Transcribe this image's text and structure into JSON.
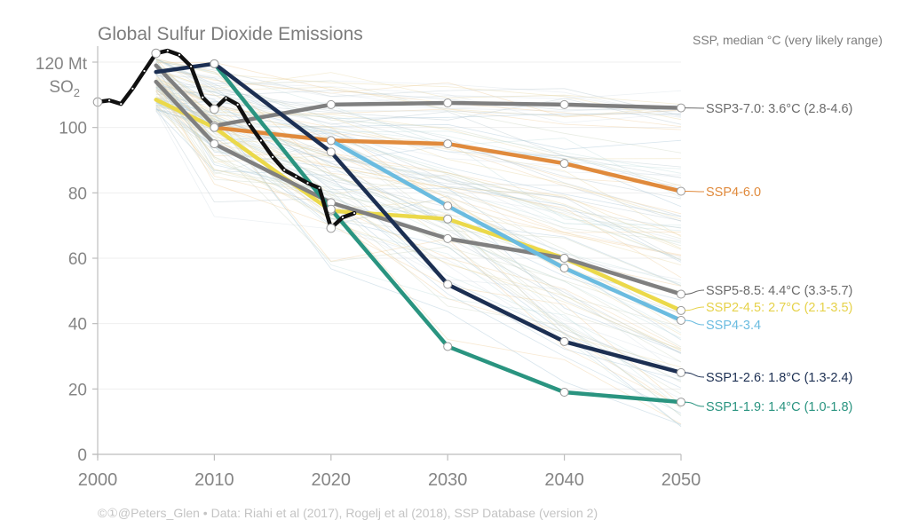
{
  "chart_data": {
    "type": "line",
    "title": "Global Sulfur Dioxide Emissions",
    "ylabel_line1": "120 Mt",
    "ylabel_line2_main": "SO",
    "ylabel_line2_sub": "2",
    "legend_title": "SSP, median °C (very likely range)",
    "xlim": [
      2000,
      2050
    ],
    "ylim": [
      0,
      120
    ],
    "xticks": [
      2000,
      2010,
      2020,
      2030,
      2040,
      2050
    ],
    "yticks": [
      0,
      20,
      40,
      60,
      80,
      100
    ],
    "grid": true,
    "historical": {
      "name": "Historical",
      "color": "#111111",
      "x": [
        2000,
        2001,
        2002,
        2003,
        2004,
        2005,
        2006,
        2007,
        2008,
        2009,
        2010,
        2011,
        2012,
        2013,
        2014,
        2015,
        2016,
        2017,
        2018,
        2019,
        2020,
        2021,
        2022
      ],
      "y": [
        107.8,
        108.3,
        107.2,
        111.9,
        117.3,
        122.7,
        123.5,
        122.2,
        118.7,
        109.2,
        105.6,
        109.0,
        107.0,
        101.0,
        96.0,
        91.0,
        87.0,
        85.0,
        83.0,
        81.5,
        69.2,
        72.5,
        73.8
      ],
      "marked_years": [
        2000,
        2005,
        2010,
        2020
      ]
    },
    "series": [
      {
        "name": "SSP3-7.0",
        "label": "SSP3-7.0: 3.6°C (2.8-4.6)",
        "color": "#7f7f7f",
        "label_color": "#6b6b6b",
        "x": [
          2005,
          2010,
          2020,
          2030,
          2040,
          2050
        ],
        "y": [
          119,
          100.5,
          107,
          107.5,
          107,
          106
        ]
      },
      {
        "name": "SSP4-6.0",
        "label": "SSP4-6.0",
        "color": "#e08a3c",
        "label_color": "#e08a3c",
        "x": [
          2010,
          2020,
          2030,
          2040,
          2050
        ],
        "y": [
          100,
          96,
          95,
          89,
          80.5
        ]
      },
      {
        "name": "SSP5-8.5",
        "label": "SSP5-8.5: 4.4°C (3.3-5.7)",
        "color": "#808080",
        "label_color": "#6b6b6b",
        "x": [
          2005,
          2010,
          2020,
          2030,
          2040,
          2050
        ],
        "y": [
          114,
          95,
          77,
          66,
          60,
          49
        ]
      },
      {
        "name": "SSP2-4.5",
        "label": "SSP2-4.5: 2.7°C (2.1-3.5)",
        "color": "#ebd94a",
        "label_color": "#e6d24a",
        "x": [
          2005,
          2010,
          2020,
          2030,
          2040,
          2050
        ],
        "y": [
          108.5,
          100,
          74.5,
          72,
          60,
          44
        ]
      },
      {
        "name": "SSP4-3.4",
        "label": "SSP4-3.4",
        "color": "#6bbce0",
        "label_color": "#6bbce0",
        "x": [
          2020,
          2030,
          2040,
          2050
        ],
        "y": [
          96,
          76,
          57,
          41
        ]
      },
      {
        "name": "SSP1-2.6",
        "label": "SSP1-2.6: 1.8°C (1.3-2.4)",
        "color": "#1c2f52",
        "label_color": "#1c2f52",
        "x": [
          2005,
          2010,
          2020,
          2030,
          2040,
          2050
        ],
        "y": [
          117,
          119.5,
          92.5,
          52,
          34.5,
          25
        ]
      },
      {
        "name": "SSP1-1.9",
        "label": "SSP1-1.9: 1.4°C (1.0-1.8)",
        "color": "#2a9480",
        "label_color": "#2a9480",
        "x": [
          2010,
          2020,
          2030,
          2040,
          2050
        ],
        "y": [
          119.5,
          75,
          33,
          19,
          16
        ]
      }
    ],
    "footer": "©①@Peters_Glen  •  Data: Riahi et al (2017), Rogelj et al (2018), SSP Database (version 2)"
  }
}
